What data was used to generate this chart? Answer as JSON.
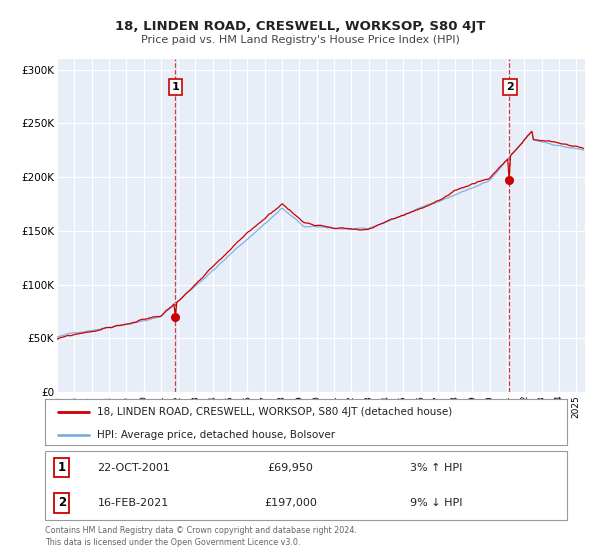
{
  "title": "18, LINDEN ROAD, CRESWELL, WORKSOP, S80 4JT",
  "subtitle": "Price paid vs. HM Land Registry's House Price Index (HPI)",
  "legend_line1": "18, LINDEN ROAD, CRESWELL, WORKSOP, S80 4JT (detached house)",
  "legend_line2": "HPI: Average price, detached house, Bolsover",
  "hpi_color": "#7ab0e0",
  "price_color": "#cc0000",
  "marker_color": "#cc0000",
  "sale1_date": 2001.81,
  "sale1_price": 69950,
  "sale1_label": "1",
  "sale1_text": "22-OCT-2001",
  "sale1_amount": "£69,950",
  "sale1_hpi": "3% ↑ HPI",
  "sale2_date": 2021.12,
  "sale2_price": 197000,
  "sale2_label": "2",
  "sale2_text": "16-FEB-2021",
  "sale2_amount": "£197,000",
  "sale2_hpi": "9% ↓ HPI",
  "xmin": 1995,
  "xmax": 2025.5,
  "ymin": 0,
  "ymax": 310000,
  "yticks": [
    0,
    50000,
    100000,
    150000,
    200000,
    250000,
    300000
  ],
  "ytick_labels": [
    "£0",
    "£50K",
    "£100K",
    "£150K",
    "£200K",
    "£250K",
    "£300K"
  ],
  "background_color": "#e8eef8",
  "footer": "Contains HM Land Registry data © Crown copyright and database right 2024.\nThis data is licensed under the Open Government Licence v3.0."
}
